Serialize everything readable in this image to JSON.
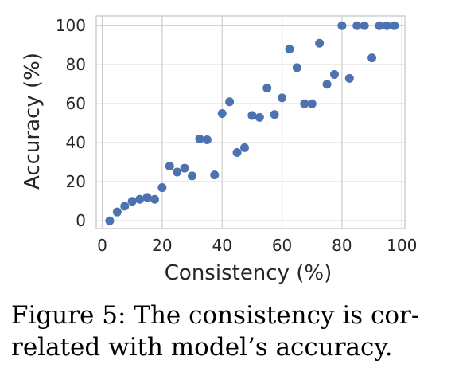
{
  "chart_data": {
    "type": "scatter",
    "xlabel": "Consistency (%)",
    "ylabel": "Accuracy (%)",
    "xlim": [
      -2,
      101
    ],
    "ylim": [
      -4,
      105
    ],
    "xticks": [
      0,
      20,
      40,
      60,
      80,
      100
    ],
    "yticks": [
      0,
      20,
      40,
      60,
      80,
      100
    ],
    "xtick_labels": [
      "0",
      "20",
      "40",
      "60",
      "80",
      "100"
    ],
    "ytick_labels": [
      "0",
      "20",
      "40",
      "60",
      "80",
      "100"
    ],
    "grid": true,
    "marker_color": "#4c72b0",
    "points": [
      {
        "x": 2.5,
        "y": 0
      },
      {
        "x": 5,
        "y": 4.5
      },
      {
        "x": 7.5,
        "y": 7.5
      },
      {
        "x": 10,
        "y": 10
      },
      {
        "x": 12.5,
        "y": 11
      },
      {
        "x": 15,
        "y": 12
      },
      {
        "x": 17.5,
        "y": 11
      },
      {
        "x": 20,
        "y": 17
      },
      {
        "x": 22.5,
        "y": 28
      },
      {
        "x": 25,
        "y": 25
      },
      {
        "x": 27.5,
        "y": 27
      },
      {
        "x": 30,
        "y": 23
      },
      {
        "x": 32.5,
        "y": 42
      },
      {
        "x": 35,
        "y": 41.5
      },
      {
        "x": 37.5,
        "y": 23.5
      },
      {
        "x": 40,
        "y": 55
      },
      {
        "x": 42.5,
        "y": 61
      },
      {
        "x": 45,
        "y": 35
      },
      {
        "x": 47.5,
        "y": 37.5
      },
      {
        "x": 50,
        "y": 54
      },
      {
        "x": 52.5,
        "y": 53
      },
      {
        "x": 55,
        "y": 68
      },
      {
        "x": 57.5,
        "y": 54.5
      },
      {
        "x": 60,
        "y": 63
      },
      {
        "x": 62.5,
        "y": 88
      },
      {
        "x": 65,
        "y": 78.5
      },
      {
        "x": 67.5,
        "y": 60
      },
      {
        "x": 70,
        "y": 60
      },
      {
        "x": 72.5,
        "y": 91
      },
      {
        "x": 75,
        "y": 70
      },
      {
        "x": 77.5,
        "y": 75
      },
      {
        "x": 80,
        "y": 100
      },
      {
        "x": 82.5,
        "y": 73
      },
      {
        "x": 85,
        "y": 100
      },
      {
        "x": 87.5,
        "y": 100
      },
      {
        "x": 90,
        "y": 83.5
      },
      {
        "x": 92.5,
        "y": 100
      },
      {
        "x": 95,
        "y": 100
      },
      {
        "x": 97.5,
        "y": 100
      }
    ]
  },
  "caption": {
    "line1": "Figure 5: The consistency is cor-",
    "line2": "related with model’s accuracy."
  }
}
